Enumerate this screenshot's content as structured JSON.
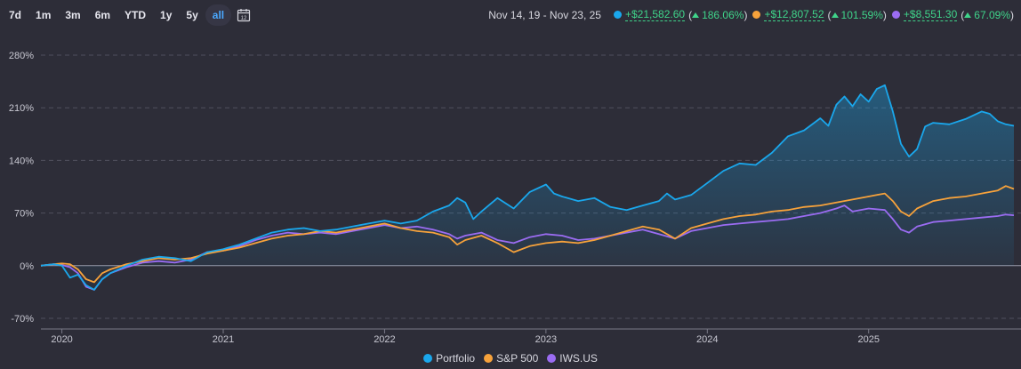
{
  "toolbar": {
    "ranges": [
      {
        "label": "7d"
      },
      {
        "label": "1m"
      },
      {
        "label": "3m"
      },
      {
        "label": "6m"
      },
      {
        "label": "YTD"
      },
      {
        "label": "1y"
      },
      {
        "label": "5y"
      },
      {
        "label": "all"
      }
    ],
    "active_range": "all",
    "calendar_icon": "calendar-icon"
  },
  "summary": {
    "date_range": "Nov 14, 19 - Nov 23, 25",
    "items": [
      {
        "name": "Portfolio",
        "color": "#1aa7ec",
        "gain": "+$21,582.60",
        "pct": "186.06%"
      },
      {
        "name": "S&P 500",
        "color": "#f7a23b",
        "gain": "+$12,807.52",
        "pct": "101.59%"
      },
      {
        "name": "IWS.US",
        "color": "#9b6cf2",
        "gain": "+$8,551.30",
        "pct": "67.09%"
      }
    ]
  },
  "chart_data": {
    "type": "line",
    "title": "",
    "xlabel": "",
    "ylabel": "",
    "x_ticks": [
      "2020",
      "2021",
      "2022",
      "2023",
      "2024",
      "2025"
    ],
    "y_ticks": [
      "280%",
      "210%",
      "140%",
      "70%",
      "0%",
      "-70%"
    ],
    "ylim": [
      -70,
      280
    ],
    "x_range": [
      2019.87,
      2025.9
    ],
    "grid": true,
    "legend_position": "bottom-center",
    "series": [
      {
        "name": "Portfolio",
        "color": "#1aa7ec",
        "filled": true,
        "points": [
          [
            2019.87,
            0
          ],
          [
            2019.95,
            2
          ],
          [
            2020.0,
            0
          ],
          [
            2020.05,
            -16
          ],
          [
            2020.1,
            -12
          ],
          [
            2020.15,
            -26
          ],
          [
            2020.2,
            -32
          ],
          [
            2020.25,
            -18
          ],
          [
            2020.3,
            -10
          ],
          [
            2020.4,
            0
          ],
          [
            2020.5,
            8
          ],
          [
            2020.6,
            12
          ],
          [
            2020.7,
            10
          ],
          [
            2020.8,
            6
          ],
          [
            2020.9,
            18
          ],
          [
            2021.0,
            22
          ],
          [
            2021.1,
            28
          ],
          [
            2021.2,
            36
          ],
          [
            2021.3,
            44
          ],
          [
            2021.4,
            48
          ],
          [
            2021.5,
            50
          ],
          [
            2021.6,
            46
          ],
          [
            2021.7,
            48
          ],
          [
            2021.8,
            52
          ],
          [
            2021.9,
            56
          ],
          [
            2022.0,
            60
          ],
          [
            2022.1,
            56
          ],
          [
            2022.2,
            60
          ],
          [
            2022.3,
            72
          ],
          [
            2022.4,
            80
          ],
          [
            2022.45,
            90
          ],
          [
            2022.5,
            84
          ],
          [
            2022.55,
            62
          ],
          [
            2022.6,
            72
          ],
          [
            2022.7,
            90
          ],
          [
            2022.8,
            76
          ],
          [
            2022.9,
            98
          ],
          [
            2023.0,
            108
          ],
          [
            2023.05,
            96
          ],
          [
            2023.1,
            92
          ],
          [
            2023.2,
            86
          ],
          [
            2023.3,
            90
          ],
          [
            2023.4,
            78
          ],
          [
            2023.5,
            74
          ],
          [
            2023.6,
            80
          ],
          [
            2023.7,
            86
          ],
          [
            2023.75,
            96
          ],
          [
            2023.8,
            88
          ],
          [
            2023.9,
            94
          ],
          [
            2024.0,
            110
          ],
          [
            2024.1,
            126
          ],
          [
            2024.2,
            136
          ],
          [
            2024.3,
            134
          ],
          [
            2024.4,
            150
          ],
          [
            2024.5,
            172
          ],
          [
            2024.6,
            180
          ],
          [
            2024.7,
            196
          ],
          [
            2024.75,
            186
          ],
          [
            2024.8,
            214
          ],
          [
            2024.85,
            225
          ],
          [
            2024.9,
            212
          ],
          [
            2024.95,
            228
          ],
          [
            2025.0,
            218
          ],
          [
            2025.05,
            235
          ],
          [
            2025.1,
            240
          ],
          [
            2025.15,
            205
          ],
          [
            2025.2,
            162
          ],
          [
            2025.25,
            145
          ],
          [
            2025.3,
            155
          ],
          [
            2025.35,
            185
          ],
          [
            2025.4,
            190
          ],
          [
            2025.5,
            188
          ],
          [
            2025.6,
            195
          ],
          [
            2025.7,
            205
          ],
          [
            2025.75,
            202
          ],
          [
            2025.8,
            192
          ],
          [
            2025.85,
            188
          ],
          [
            2025.9,
            186
          ]
        ]
      },
      {
        "name": "S&P 500",
        "color": "#f7a23b",
        "filled": false,
        "points": [
          [
            2019.87,
            0
          ],
          [
            2019.95,
            2
          ],
          [
            2020.0,
            3
          ],
          [
            2020.05,
            2
          ],
          [
            2020.1,
            -5
          ],
          [
            2020.15,
            -18
          ],
          [
            2020.2,
            -22
          ],
          [
            2020.25,
            -10
          ],
          [
            2020.3,
            -5
          ],
          [
            2020.4,
            2
          ],
          [
            2020.5,
            6
          ],
          [
            2020.6,
            10
          ],
          [
            2020.7,
            8
          ],
          [
            2020.8,
            10
          ],
          [
            2020.9,
            16
          ],
          [
            2021.0,
            20
          ],
          [
            2021.1,
            24
          ],
          [
            2021.2,
            30
          ],
          [
            2021.3,
            36
          ],
          [
            2021.4,
            40
          ],
          [
            2021.5,
            42
          ],
          [
            2021.6,
            46
          ],
          [
            2021.7,
            44
          ],
          [
            2021.8,
            48
          ],
          [
            2021.9,
            52
          ],
          [
            2022.0,
            56
          ],
          [
            2022.1,
            50
          ],
          [
            2022.2,
            46
          ],
          [
            2022.3,
            44
          ],
          [
            2022.4,
            38
          ],
          [
            2022.45,
            28
          ],
          [
            2022.5,
            34
          ],
          [
            2022.6,
            40
          ],
          [
            2022.7,
            30
          ],
          [
            2022.8,
            18
          ],
          [
            2022.9,
            26
          ],
          [
            2023.0,
            30
          ],
          [
            2023.1,
            32
          ],
          [
            2023.2,
            30
          ],
          [
            2023.3,
            34
          ],
          [
            2023.4,
            40
          ],
          [
            2023.5,
            46
          ],
          [
            2023.6,
            52
          ],
          [
            2023.7,
            48
          ],
          [
            2023.8,
            36
          ],
          [
            2023.9,
            50
          ],
          [
            2024.0,
            56
          ],
          [
            2024.1,
            62
          ],
          [
            2024.2,
            66
          ],
          [
            2024.3,
            68
          ],
          [
            2024.4,
            72
          ],
          [
            2024.5,
            74
          ],
          [
            2024.6,
            78
          ],
          [
            2024.7,
            80
          ],
          [
            2024.8,
            84
          ],
          [
            2024.9,
            88
          ],
          [
            2025.0,
            92
          ],
          [
            2025.05,
            94
          ],
          [
            2025.1,
            96
          ],
          [
            2025.15,
            86
          ],
          [
            2025.2,
            72
          ],
          [
            2025.25,
            66
          ],
          [
            2025.3,
            76
          ],
          [
            2025.4,
            86
          ],
          [
            2025.5,
            90
          ],
          [
            2025.6,
            92
          ],
          [
            2025.7,
            96
          ],
          [
            2025.8,
            100
          ],
          [
            2025.85,
            106
          ],
          [
            2025.9,
            102
          ]
        ]
      },
      {
        "name": "IWS.US",
        "color": "#9b6cf2",
        "filled": false,
        "points": [
          [
            2019.87,
            0
          ],
          [
            2019.95,
            2
          ],
          [
            2020.0,
            1
          ],
          [
            2020.05,
            -2
          ],
          [
            2020.1,
            -10
          ],
          [
            2020.15,
            -28
          ],
          [
            2020.2,
            -32
          ],
          [
            2020.25,
            -18
          ],
          [
            2020.3,
            -10
          ],
          [
            2020.4,
            -2
          ],
          [
            2020.5,
            4
          ],
          [
            2020.6,
            6
          ],
          [
            2020.7,
            4
          ],
          [
            2020.8,
            8
          ],
          [
            2020.9,
            18
          ],
          [
            2021.0,
            20
          ],
          [
            2021.1,
            26
          ],
          [
            2021.2,
            34
          ],
          [
            2021.3,
            40
          ],
          [
            2021.4,
            44
          ],
          [
            2021.5,
            42
          ],
          [
            2021.6,
            44
          ],
          [
            2021.7,
            42
          ],
          [
            2021.8,
            46
          ],
          [
            2021.9,
            50
          ],
          [
            2022.0,
            54
          ],
          [
            2022.1,
            50
          ],
          [
            2022.2,
            52
          ],
          [
            2022.3,
            48
          ],
          [
            2022.4,
            42
          ],
          [
            2022.45,
            36
          ],
          [
            2022.5,
            40
          ],
          [
            2022.6,
            44
          ],
          [
            2022.7,
            34
          ],
          [
            2022.8,
            30
          ],
          [
            2022.9,
            38
          ],
          [
            2023.0,
            42
          ],
          [
            2023.1,
            40
          ],
          [
            2023.2,
            34
          ],
          [
            2023.3,
            36
          ],
          [
            2023.4,
            40
          ],
          [
            2023.5,
            44
          ],
          [
            2023.6,
            48
          ],
          [
            2023.7,
            42
          ],
          [
            2023.8,
            36
          ],
          [
            2023.9,
            46
          ],
          [
            2024.0,
            50
          ],
          [
            2024.1,
            54
          ],
          [
            2024.2,
            56
          ],
          [
            2024.3,
            58
          ],
          [
            2024.4,
            60
          ],
          [
            2024.5,
            62
          ],
          [
            2024.6,
            66
          ],
          [
            2024.7,
            70
          ],
          [
            2024.8,
            76
          ],
          [
            2024.85,
            80
          ],
          [
            2024.9,
            72
          ],
          [
            2025.0,
            76
          ],
          [
            2025.1,
            74
          ],
          [
            2025.15,
            62
          ],
          [
            2025.2,
            48
          ],
          [
            2025.25,
            44
          ],
          [
            2025.3,
            52
          ],
          [
            2025.4,
            58
          ],
          [
            2025.5,
            60
          ],
          [
            2025.6,
            62
          ],
          [
            2025.7,
            64
          ],
          [
            2025.8,
            66
          ],
          [
            2025.85,
            68
          ],
          [
            2025.9,
            67
          ]
        ]
      }
    ]
  }
}
